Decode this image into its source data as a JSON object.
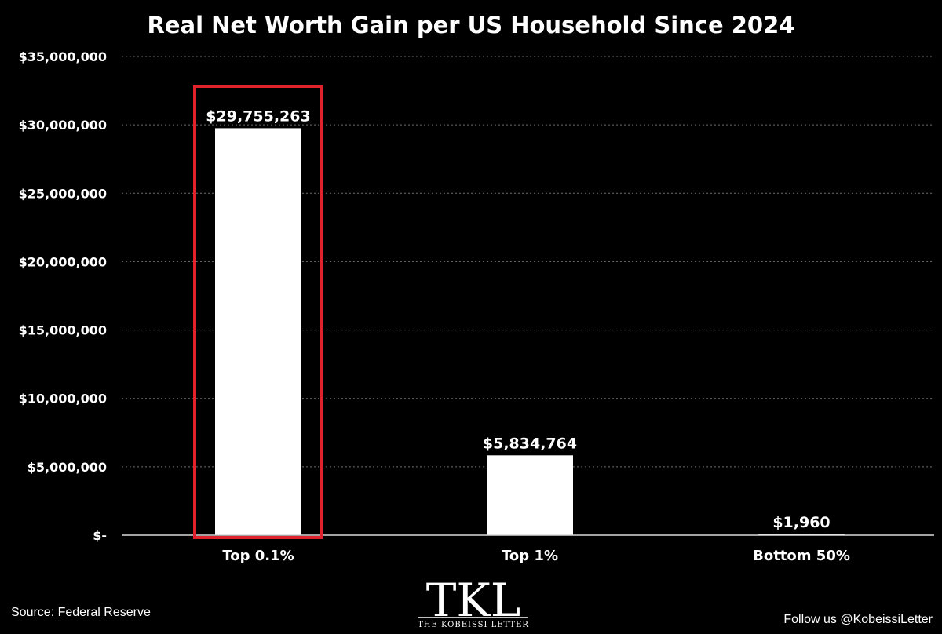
{
  "chart_data": {
    "type": "bar",
    "title": "Real Net Worth Gain per US Household Since 2024",
    "categories": [
      "Top 0.1%",
      "Top 1%",
      "Bottom 50%"
    ],
    "values": [
      29755263,
      5834764,
      1960
    ],
    "data_labels": [
      "$29,755,263",
      "$5,834,764",
      "$1,960"
    ],
    "ylim": [
      0,
      35000000
    ],
    "yticks": [
      0,
      5000000,
      10000000,
      15000000,
      20000000,
      25000000,
      30000000,
      35000000
    ],
    "ytick_labels": [
      "$-",
      "$5,000,000",
      "$10,000,000",
      "$15,000,000",
      "$20,000,000",
      "$25,000,000",
      "$30,000,000",
      "$35,000,000"
    ],
    "grid": "horizontal dotted",
    "highlight_category": "Top 0.1%",
    "xlabel": "",
    "ylabel": ""
  },
  "footer": {
    "source": "Source: Federal Reserve",
    "follow": "Follow us @KobeissiLetter"
  },
  "logo": {
    "main": "TKL",
    "sub": "THE KOBEISSI LETTER"
  },
  "colors": {
    "background": "#000000",
    "bar": "#ffffff",
    "highlight": "#e0232b",
    "grid": "#6e6e6e",
    "text": "#ffffff"
  }
}
